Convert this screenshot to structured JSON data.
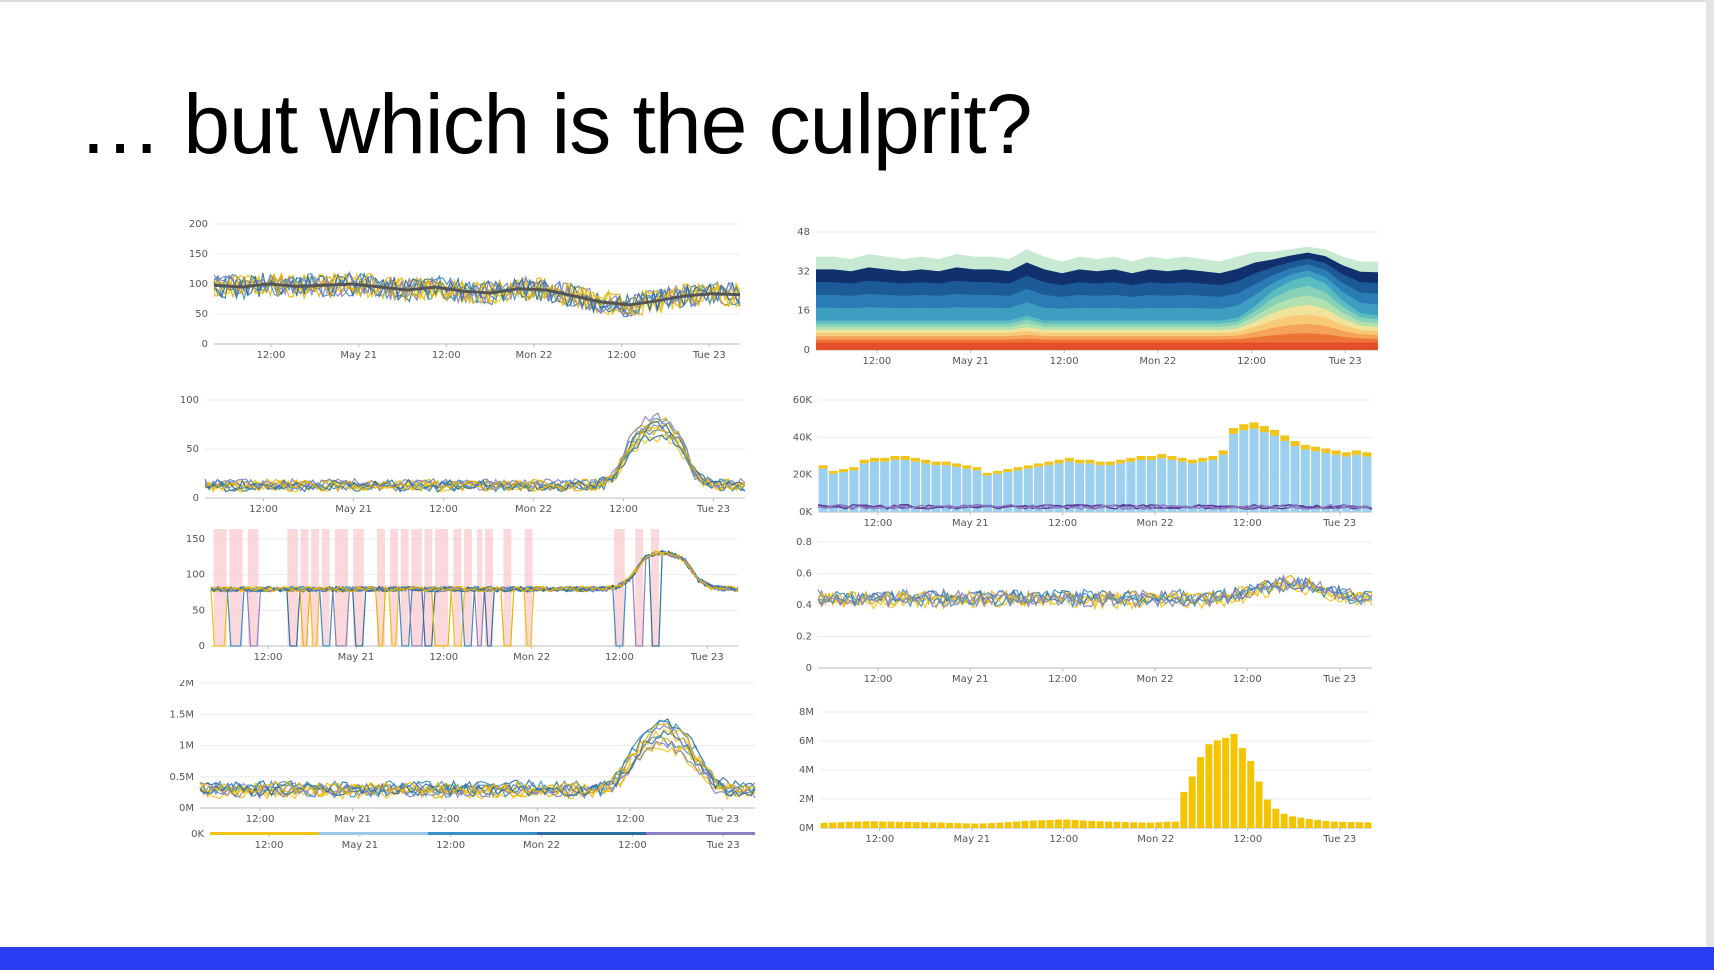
{
  "slide": {
    "title": "… but which is the culprit?",
    "accent_color": "#2b3df2"
  },
  "chart_data": [
    {
      "type": "line",
      "yticks": [
        "200",
        "150",
        "100",
        "50",
        "0"
      ],
      "xticks": [
        "12:00",
        "May 21",
        "12:00",
        "Mon 22",
        "12:00",
        "Tue 23"
      ],
      "ylim": [
        0,
        200
      ],
      "series_count": 10,
      "series_colors": [
        "#f0c419",
        "#3a8fc7",
        "#8c7fc0",
        "#2c6fa0",
        "#e8b400"
      ],
      "trend": {
        "name": "",
        "color": "#555555",
        "values": [
          98,
          95,
          100,
          96,
          98,
          100,
          95,
          90,
          95,
          88,
          85,
          92,
          90,
          80,
          70,
          65,
          72,
          80,
          84,
          82
        ]
      },
      "band": [
        85,
        115
      ]
    },
    {
      "type": "line",
      "yticks": [
        "100",
        "50",
        "0"
      ],
      "xticks": [
        "12:00",
        "May 21",
        "12:00",
        "Mon 22",
        "12:00",
        "Tue 23"
      ],
      "ylim": [
        0,
        115
      ],
      "series_count": 10,
      "series_colors": [
        "#f0c419",
        "#3a8fc7",
        "#8c7fc0",
        "#2c6fa0",
        "#e8b400"
      ],
      "profile": [
        15,
        15,
        15,
        15,
        15,
        15,
        15,
        15,
        15,
        15,
        15,
        15,
        15,
        15,
        15,
        15,
        15,
        15,
        15,
        15,
        15,
        15,
        15,
        15,
        15,
        15,
        15,
        15,
        15,
        15,
        15,
        18,
        30,
        60,
        80,
        85,
        82,
        65,
        30,
        18,
        16,
        15,
        15
      ]
    },
    {
      "type": "line",
      "yticks": [
        "150",
        "100",
        "50",
        "0"
      ],
      "xticks": [
        "12:00",
        "May 21",
        "12:00",
        "Mon 22",
        "12:00",
        "Tue 23"
      ],
      "ylim": [
        0,
        160
      ],
      "series_count": 10,
      "series_colors": [
        "#f0c419",
        "#3a8fc7",
        "#8c7fc0",
        "#2c6fa0",
        "#e8b400"
      ],
      "highlight_color": "#f8c8cc",
      "profile": [
        85,
        85,
        85,
        85,
        85,
        85,
        85,
        85,
        85,
        85,
        85,
        85,
        85,
        85,
        85,
        85,
        85,
        85,
        85,
        85,
        85,
        85,
        85,
        85,
        85,
        85,
        85,
        85,
        85,
        85,
        88,
        100,
        130,
        140,
        138,
        130,
        100,
        88,
        86,
        85
      ],
      "outages": [
        [
          0.2,
          1.2
        ],
        [
          1.4,
          2.4
        ],
        [
          2.8,
          3.6
        ],
        [
          5.8,
          6.6
        ],
        [
          6.8,
          7.4
        ],
        [
          7.6,
          8.2
        ],
        [
          8.4,
          9.0
        ],
        [
          9.4,
          10.4
        ],
        [
          10.8,
          11.6
        ],
        [
          12.6,
          13.2
        ],
        [
          13.6,
          14.2
        ],
        [
          14.4,
          15.0
        ],
        [
          15.2,
          16.0
        ],
        [
          16.2,
          16.8
        ],
        [
          17.0,
          18.0
        ],
        [
          18.4,
          19.0
        ],
        [
          19.2,
          19.8
        ],
        [
          20.2,
          20.6
        ],
        [
          20.8,
          21.4
        ],
        [
          22.2,
          22.8
        ],
        [
          23.8,
          24.4
        ],
        [
          30.6,
          31.4
        ],
        [
          32.2,
          32.8
        ],
        [
          33.4,
          34.0
        ]
      ]
    },
    {
      "type": "line",
      "yticks": [
        "2M",
        "1.5M",
        "1M",
        "0.5M",
        "0M"
      ],
      "xticks": [
        "12:00",
        "May 21",
        "12:00",
        "Mon 22",
        "12:00",
        "Tue 23"
      ],
      "ylim": [
        0,
        2000000
      ],
      "series_count": 10,
      "series_colors": [
        "#f0c419",
        "#3a8fc7",
        "#8c7fc0",
        "#2c6fa0",
        "#e8b400"
      ],
      "profile": [
        300000,
        300000,
        300000,
        300000,
        300000,
        300000,
        300000,
        300000,
        300000,
        300000,
        300000,
        300000,
        300000,
        300000,
        300000,
        300000,
        300000,
        300000,
        300000,
        300000,
        300000,
        300000,
        300000,
        300000,
        300000,
        300000,
        300000,
        300000,
        300000,
        300000,
        320000,
        500000,
        800000,
        1100000,
        1200000,
        1150000,
        1000000,
        700000,
        400000,
        300000,
        300000,
        300000
      ]
    },
    {
      "type": "line",
      "yticks": [
        "0K"
      ],
      "xticks": [
        "12:00",
        "May 21",
        "12:00",
        "Mon 22",
        "12:00",
        "Tue 23"
      ],
      "legend_colors": [
        "#f0c419",
        "#9cc9e8",
        "#3a8fc7",
        "#2c6fa0",
        "#8c7fc0"
      ]
    },
    {
      "type": "area",
      "stacked": true,
      "yticks": [
        "48",
        "32",
        "16",
        "0"
      ],
      "xticks": [
        "12:00",
        "May 21",
        "12:00",
        "Mon 22",
        "12:00",
        "Tue 23"
      ],
      "ylim": [
        0,
        48
      ],
      "layer_colors": [
        "#c8ead2",
        "#10306e",
        "#1d5a98",
        "#2b7bb5",
        "#3d9ec2",
        "#5cbcc0",
        "#86d1b8",
        "#b2e1b0",
        "#f2e39a",
        "#f8c976",
        "#f5a35a",
        "#ee7437",
        "#e34d2a"
      ],
      "top": [
        38,
        38,
        37,
        39,
        38,
        37,
        38,
        37,
        39,
        38,
        38,
        37,
        41,
        38,
        36,
        38,
        37,
        38,
        36,
        38,
        37,
        38,
        37,
        36,
        38,
        40,
        40,
        41,
        42,
        41,
        38,
        36,
        36
      ],
      "lower": [
        12,
        12,
        12,
        12,
        12,
        12,
        12,
        12,
        12,
        12,
        12,
        12,
        14,
        12,
        12,
        12,
        12,
        12,
        12,
        12,
        12,
        12,
        12,
        12,
        13,
        18,
        24,
        28,
        30,
        27,
        20,
        15,
        14
      ]
    },
    {
      "type": "bar",
      "stacked": true,
      "yticks": [
        "60K",
        "40K",
        "20K",
        "0K"
      ],
      "xticks": [
        "12:00",
        "May 21",
        "12:00",
        "Mon 22",
        "12:00",
        "Tue 23"
      ],
      "ylim": [
        0,
        60000
      ],
      "series_colors": [
        "#9cd0ee",
        "#f0c419",
        "#5b3a9a"
      ],
      "values": [
        25000,
        22000,
        23000,
        24000,
        28000,
        29000,
        29000,
        30000,
        30000,
        29000,
        28000,
        27000,
        27000,
        26000,
        25000,
        24000,
        21000,
        22000,
        23000,
        24000,
        25000,
        26000,
        27000,
        28000,
        29000,
        28000,
        28000,
        27000,
        27000,
        28000,
        29000,
        30000,
        30000,
        31000,
        30000,
        29000,
        28000,
        29000,
        30000,
        33000,
        45000,
        47000,
        48000,
        46000,
        44000,
        41000,
        38000,
        36000,
        35000,
        34000,
        33000,
        32000,
        33000,
        32000
      ]
    },
    {
      "type": "line",
      "yticks": [
        "0.8",
        "0.6",
        "0.4",
        "0.2",
        "0"
      ],
      "xticks": [
        "12:00",
        "May 21",
        "12:00",
        "Mon 22",
        "12:00",
        "Tue 23"
      ],
      "ylim": [
        0,
        0.8
      ],
      "series_count": 8,
      "series_colors": [
        "#f0c419",
        "#3a8fc7",
        "#8c7fc0",
        "#2c6fa0",
        "#e8b400"
      ],
      "profile": [
        0.44,
        0.44,
        0.44,
        0.44,
        0.44,
        0.44,
        0.44,
        0.44,
        0.44,
        0.44,
        0.44,
        0.44,
        0.44,
        0.44,
        0.44,
        0.44,
        0.44,
        0.44,
        0.44,
        0.44,
        0.45,
        0.48,
        0.52,
        0.54,
        0.52,
        0.48,
        0.45,
        0.44
      ]
    },
    {
      "type": "bar",
      "yticks": [
        "8M",
        "6M",
        "4M",
        "2M",
        "0M"
      ],
      "xticks": [
        "12:00",
        "May 21",
        "12:00",
        "Mon 22",
        "12:00",
        "Tue 23"
      ],
      "ylim": [
        0,
        9000000
      ],
      "series_colors": [
        "#f5c400"
      ],
      "values": [
        400000,
        420000,
        450000,
        480000,
        500000,
        520000,
        520000,
        500000,
        500000,
        480000,
        480000,
        460000,
        450000,
        430000,
        420000,
        400000,
        380000,
        360000,
        350000,
        360000,
        380000,
        420000,
        460000,
        500000,
        550000,
        580000,
        600000,
        620000,
        650000,
        650000,
        620000,
        580000,
        550000,
        520000,
        500000,
        480000,
        460000,
        440000,
        420000,
        420000,
        440000,
        480000,
        500000,
        2800000,
        4000000,
        5500000,
        6500000,
        6800000,
        7000000,
        7300000,
        6200000,
        5200000,
        3600000,
        2200000,
        1500000,
        1100000,
        900000,
        800000,
        700000,
        620000,
        550000,
        500000,
        480000,
        460000,
        450000,
        440000
      ]
    }
  ]
}
